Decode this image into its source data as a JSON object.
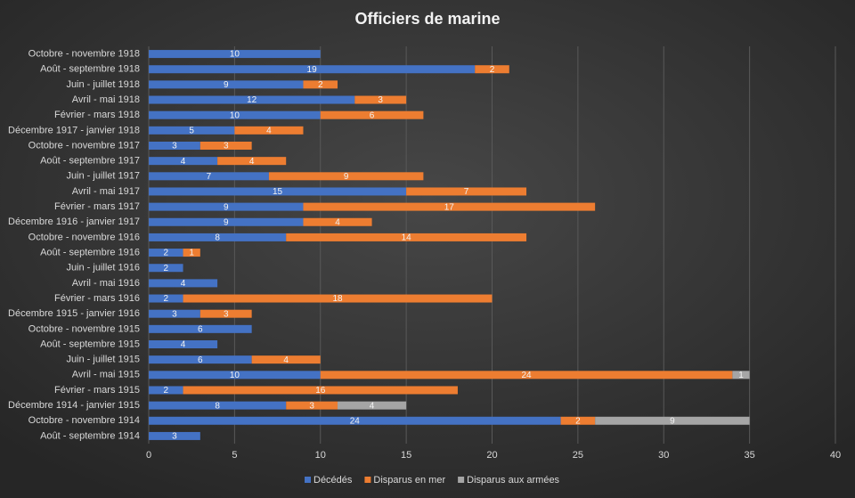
{
  "chart_data": {
    "type": "stacked-bar-horizontal",
    "title": "Officiers de marine",
    "categories": [
      "Octobre - novembre 1918",
      "Août - septembre 1918",
      "Juin - juillet 1918",
      "Avril - mai 1918",
      "Février - mars 1918",
      "Décembre 1917 - janvier 1918",
      "Octobre - novembre 1917",
      "Août - septembre 1917",
      "Juin - juillet 1917",
      "Avril - mai 1917",
      "Février - mars 1917",
      "Décembre 1916 - janvier 1917",
      "Octobre - novembre 1916",
      "Août - septembre 1916",
      "Juin - juillet 1916",
      "Avril - mai 1916",
      "Février - mars 1916",
      "Décembre 1915 - janvier 1916",
      "Octobre - novembre 1915",
      "Août - septembre 1915",
      "Juin - juillet 1915",
      "Avril - mai 1915",
      "Février - mars 1915",
      "Décembre 1914 - janvier 1915",
      "Octobre - novembre 1914",
      "Août - septembre 1914"
    ],
    "series": [
      {
        "name": "Décédés",
        "color": "#4472c4",
        "values": [
          10,
          19,
          9,
          12,
          10,
          5,
          3,
          4,
          7,
          15,
          9,
          9,
          8,
          2,
          2,
          4,
          2,
          3,
          6,
          4,
          6,
          10,
          2,
          8,
          24,
          3
        ]
      },
      {
        "name": "Disparus en mer",
        "color": "#ed7d31",
        "values": [
          null,
          2,
          2,
          3,
          6,
          4,
          3,
          4,
          9,
          7,
          17,
          4,
          14,
          1,
          null,
          null,
          18,
          3,
          null,
          null,
          4,
          24,
          16,
          3,
          2,
          null
        ]
      },
      {
        "name": "Disparus aux armées",
        "color": "#a5a5a5",
        "values": [
          null,
          null,
          null,
          null,
          null,
          null,
          null,
          null,
          null,
          null,
          null,
          null,
          null,
          null,
          null,
          null,
          null,
          null,
          null,
          null,
          null,
          1,
          null,
          4,
          9,
          null
        ]
      }
    ],
    "xlim": [
      0,
      40
    ],
    "xticks": [
      0,
      5,
      10,
      15,
      20,
      25,
      30,
      35,
      40
    ],
    "grid": true,
    "legend": "bottom"
  }
}
